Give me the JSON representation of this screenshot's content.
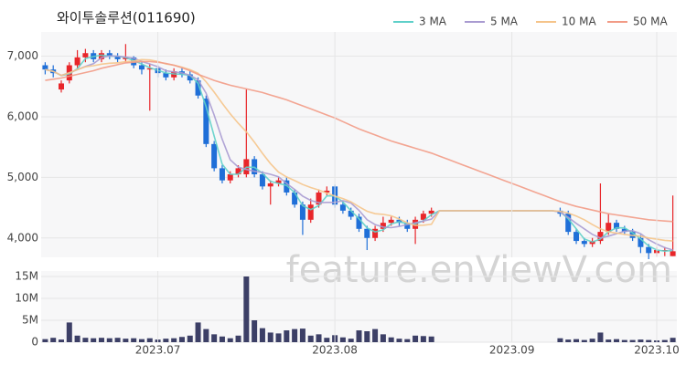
{
  "chart_data": [
    {
      "type": "candlestick",
      "title": "와이투솔루션(011690)",
      "up_color": "#e8262a",
      "down_color": "#1f6fd8",
      "ylim": [
        3680,
        7400
      ],
      "yticks": [
        {
          "value": 4000,
          "label": "4,000"
        },
        {
          "value": 5000,
          "label": "5,000"
        },
        {
          "value": 6000,
          "label": "6,000"
        },
        {
          "value": 7000,
          "label": "7,000"
        }
      ],
      "grid": true,
      "legend": "top-right",
      "open": [
        6850,
        6780,
        6450,
        6600,
        6850,
        6980,
        7050,
        6950,
        7050,
        7000,
        6950,
        6980,
        6850,
        6780,
        6800,
        6720,
        6650,
        6750,
        6700,
        6600,
        6300,
        5550,
        5150,
        4950,
        5050,
        5050,
        5300,
        5050,
        4850,
        4900,
        4950,
        4750,
        4550,
        4300,
        4550,
        4750,
        4850,
        4550,
        4450,
        4350,
        4150,
        4000,
        4150,
        4250,
        4300,
        4250,
        4150,
        4300,
        4400,
        null,
        null,
        null,
        null,
        null,
        null,
        null,
        null,
        null,
        null,
        null,
        null,
        null,
        null,
        null,
        4450,
        4400,
        4100,
        3950,
        3900,
        3950,
        4100,
        4250,
        4150,
        4100,
        4000,
        3850,
        3750,
        3800,
        3700
      ],
      "high": [
        6900,
        6850,
        6600,
        6900,
        7100,
        7120,
        7100,
        7100,
        7100,
        7050,
        7200,
        7000,
        6900,
        6880,
        6850,
        6780,
        6800,
        6800,
        6750,
        6650,
        6350,
        5600,
        5200,
        5100,
        5200,
        6450,
        5350,
        5100,
        4950,
        5000,
        5000,
        4800,
        4600,
        4650,
        4800,
        4850,
        4880,
        4600,
        4500,
        4400,
        4200,
        4200,
        4350,
        4350,
        4350,
        4300,
        4350,
        4450,
        4500,
        null,
        null,
        null,
        null,
        null,
        null,
        null,
        null,
        null,
        null,
        null,
        null,
        null,
        null,
        null,
        4500,
        4450,
        4150,
        4000,
        4000,
        4900,
        4400,
        4300,
        4200,
        4150,
        4050,
        3900,
        3850,
        3850,
        4700
      ],
      "low": [
        6700,
        6650,
        6400,
        6550,
        6800,
        6900,
        6900,
        6900,
        6950,
        6900,
        6900,
        6800,
        6700,
        6100,
        6650,
        6600,
        6600,
        6650,
        6550,
        6300,
        5500,
        5100,
        4900,
        4900,
        5000,
        5000,
        5000,
        4800,
        4550,
        4850,
        4700,
        4500,
        4050,
        4250,
        4500,
        4700,
        4500,
        4400,
        4300,
        4100,
        3800,
        3950,
        4100,
        4200,
        4200,
        4100,
        3900,
        4250,
        4350,
        null,
        null,
        null,
        null,
        null,
        null,
        null,
        null,
        null,
        null,
        null,
        null,
        null,
        null,
        null,
        4350,
        4050,
        3900,
        3850,
        3850,
        3900,
        4050,
        4100,
        4050,
        3950,
        3750,
        3650,
        3700,
        3700,
        3700
      ],
      "close": [
        6780,
        6720,
        6550,
        6850,
        6980,
        7050,
        6950,
        7050,
        7000,
        6950,
        6980,
        6850,
        6780,
        6800,
        6720,
        6650,
        6750,
        6700,
        6600,
        6350,
        5550,
        5150,
        4950,
        5050,
        5150,
        5300,
        5050,
        4850,
        4900,
        4950,
        4750,
        4550,
        4300,
        4550,
        4750,
        4780,
        4550,
        4450,
        4350,
        4150,
        4000,
        4150,
        4250,
        4300,
        4250,
        4150,
        4300,
        4400,
        4450,
        null,
        null,
        null,
        null,
        null,
        null,
        null,
        null,
        null,
        null,
        null,
        null,
        null,
        null,
        null,
        4400,
        4100,
        3950,
        3900,
        3950,
        4100,
        4250,
        4150,
        4100,
        4000,
        3850,
        3750,
        3800,
        3800,
        3780
      ],
      "series": [
        {
          "name": "3 MA",
          "color": "#5fd0c9",
          "values": [
            6780,
            6750,
            6680,
            6707,
            6793,
            6960,
            6993,
            7017,
            7000,
            7000,
            6977,
            6927,
            6870,
            6810,
            6767,
            6723,
            6707,
            6700,
            6683,
            6550,
            6167,
            5683,
            5217,
            5050,
            5050,
            5167,
            5167,
            5067,
            4933,
            4900,
            4867,
            4750,
            4533,
            4467,
            4533,
            4693,
            4693,
            4593,
            4450,
            4317,
            4167,
            4100,
            4133,
            4233,
            4267,
            4233,
            4233,
            4283,
            4383,
            4450,
            4450,
            4450,
            4450,
            4450,
            4450,
            4450,
            4450,
            4450,
            4450,
            4450,
            4450,
            4450,
            4450,
            4450,
            4433,
            4317,
            4150,
            3983,
            3933,
            3983,
            4100,
            4167,
            4167,
            4083,
            3983,
            3867,
            3800,
            3783,
            3793
          ]
        },
        {
          "name": "5 MA",
          "color": "#a99bd1",
          "values": [
            6780,
            6750,
            6683,
            6725,
            6776,
            6830,
            6876,
            6976,
            7006,
            7000,
            6986,
            6966,
            6912,
            6872,
            6826,
            6760,
            6740,
            6724,
            6684,
            6610,
            6390,
            6030,
            5630,
            5290,
            5170,
            5130,
            5100,
            5080,
            5050,
            5010,
            4900,
            4800,
            4690,
            4620,
            4580,
            4586,
            4586,
            4616,
            4576,
            4456,
            4300,
            4220,
            4180,
            4170,
            4190,
            4220,
            4250,
            4280,
            4310,
            4450,
            4450,
            4450,
            4450,
            4450,
            4450,
            4450,
            4450,
            4450,
            4450,
            4450,
            4450,
            4450,
            4450,
            4450,
            4430,
            4340,
            4240,
            4150,
            4060,
            4000,
            4030,
            4070,
            4110,
            4120,
            4070,
            3970,
            3900,
            3840,
            3800
          ]
        },
        {
          "name": "10 MA",
          "color": "#f5c48a",
          "values": [
            6780,
            6750,
            6683,
            6725,
            6776,
            6825,
            6843,
            6869,
            6883,
            6890,
            6910,
            6920,
            6943,
            6938,
            6912,
            6872,
            6852,
            6817,
            6777,
            6717,
            6577,
            6407,
            6224,
            6049,
            5892,
            5752,
            5582,
            5397,
            5227,
            5087,
            5007,
            4947,
            4882,
            4832,
            4792,
            4740,
            4690,
            4650,
            4595,
            4515,
            4440,
            4400,
            4390,
            4365,
            4312,
            4250,
            4205,
            4210,
            4225,
            4450,
            4450,
            4450,
            4450,
            4450,
            4450,
            4450,
            4450,
            4450,
            4450,
            4450,
            4450,
            4450,
            4450,
            4450,
            4440,
            4410,
            4360,
            4300,
            4220,
            4150,
            4100,
            4080,
            4060,
            4040,
            4030,
            4000,
            3980,
            3960,
            3950
          ]
        },
        {
          "name": "50 MA",
          "color": "#f29b86",
          "values": [
            6600,
            6620,
            6640,
            6670,
            6700,
            6730,
            6760,
            6800,
            6830,
            6860,
            6890,
            6900,
            6910,
            6910,
            6900,
            6880,
            6850,
            6810,
            6760,
            6700,
            6650,
            6600,
            6560,
            6520,
            6490,
            6460,
            6430,
            6400,
            6360,
            6320,
            6280,
            6230,
            6180,
            6130,
            6080,
            6030,
            5980,
            5920,
            5860,
            5800,
            5750,
            5700,
            5650,
            5600,
            5560,
            5520,
            5480,
            5440,
            5400,
            5350,
            5300,
            5250,
            5200,
            5150,
            5100,
            5050,
            5000,
            4950,
            4900,
            4850,
            4800,
            4750,
            4700,
            4650,
            4600,
            4560,
            4520,
            4490,
            4460,
            4430,
            4400,
            4380,
            4360,
            4340,
            4320,
            4300,
            4290,
            4280,
            4270
          ]
        }
      ],
      "watermark": "feature.enViewV.com"
    },
    {
      "type": "bar",
      "color": "#3c3f66",
      "ylim": [
        0,
        16250000
      ],
      "yticks": [
        0,
        {
          "value": 5000000,
          "label": "5M"
        },
        {
          "value": 10000000,
          "label": "10M"
        },
        {
          "value": 15000000,
          "label": "15M"
        }
      ],
      "categories": [
        null,
        null,
        null,
        null,
        null,
        null,
        null,
        null,
        null,
        null,
        null,
        null,
        null,
        null,
        "2023.07",
        null,
        null,
        null,
        null,
        null,
        null,
        null,
        null,
        null,
        null,
        null,
        null,
        null,
        null,
        null,
        null,
        null,
        null,
        null,
        null,
        null,
        "2023.08",
        null,
        null,
        null,
        null,
        null,
        null,
        null,
        null,
        null,
        null,
        null,
        null,
        null,
        null,
        null,
        null,
        null,
        null,
        null,
        null,
        null,
        "2023.09",
        null,
        null,
        null,
        null,
        null,
        null,
        null,
        null,
        null,
        null,
        null,
        null,
        null,
        null,
        null,
        null,
        null,
        "2023.10",
        null,
        null
      ],
      "values": [
        700000,
        1000000,
        600000,
        4500000,
        1500000,
        1000000,
        900000,
        1000000,
        900000,
        1000000,
        800000,
        900000,
        700000,
        900000,
        600000,
        800000,
        900000,
        1200000,
        1500000,
        4500000,
        3000000,
        1800000,
        1300000,
        900000,
        1500000,
        15000000,
        5000000,
        3200000,
        2200000,
        2000000,
        2700000,
        3000000,
        3100000,
        1500000,
        1800000,
        1000000,
        1600000,
        1100000,
        800000,
        2700000,
        2500000,
        3000000,
        1800000,
        1100000,
        800000,
        700000,
        1500000,
        1400000,
        1300000,
        null,
        null,
        null,
        null,
        null,
        null,
        null,
        null,
        null,
        null,
        null,
        null,
        null,
        null,
        null,
        900000,
        600000,
        700000,
        500000,
        800000,
        2200000,
        600000,
        700000,
        500000,
        500000,
        600000,
        500000,
        400000,
        500000,
        1000000
      ]
    }
  ]
}
